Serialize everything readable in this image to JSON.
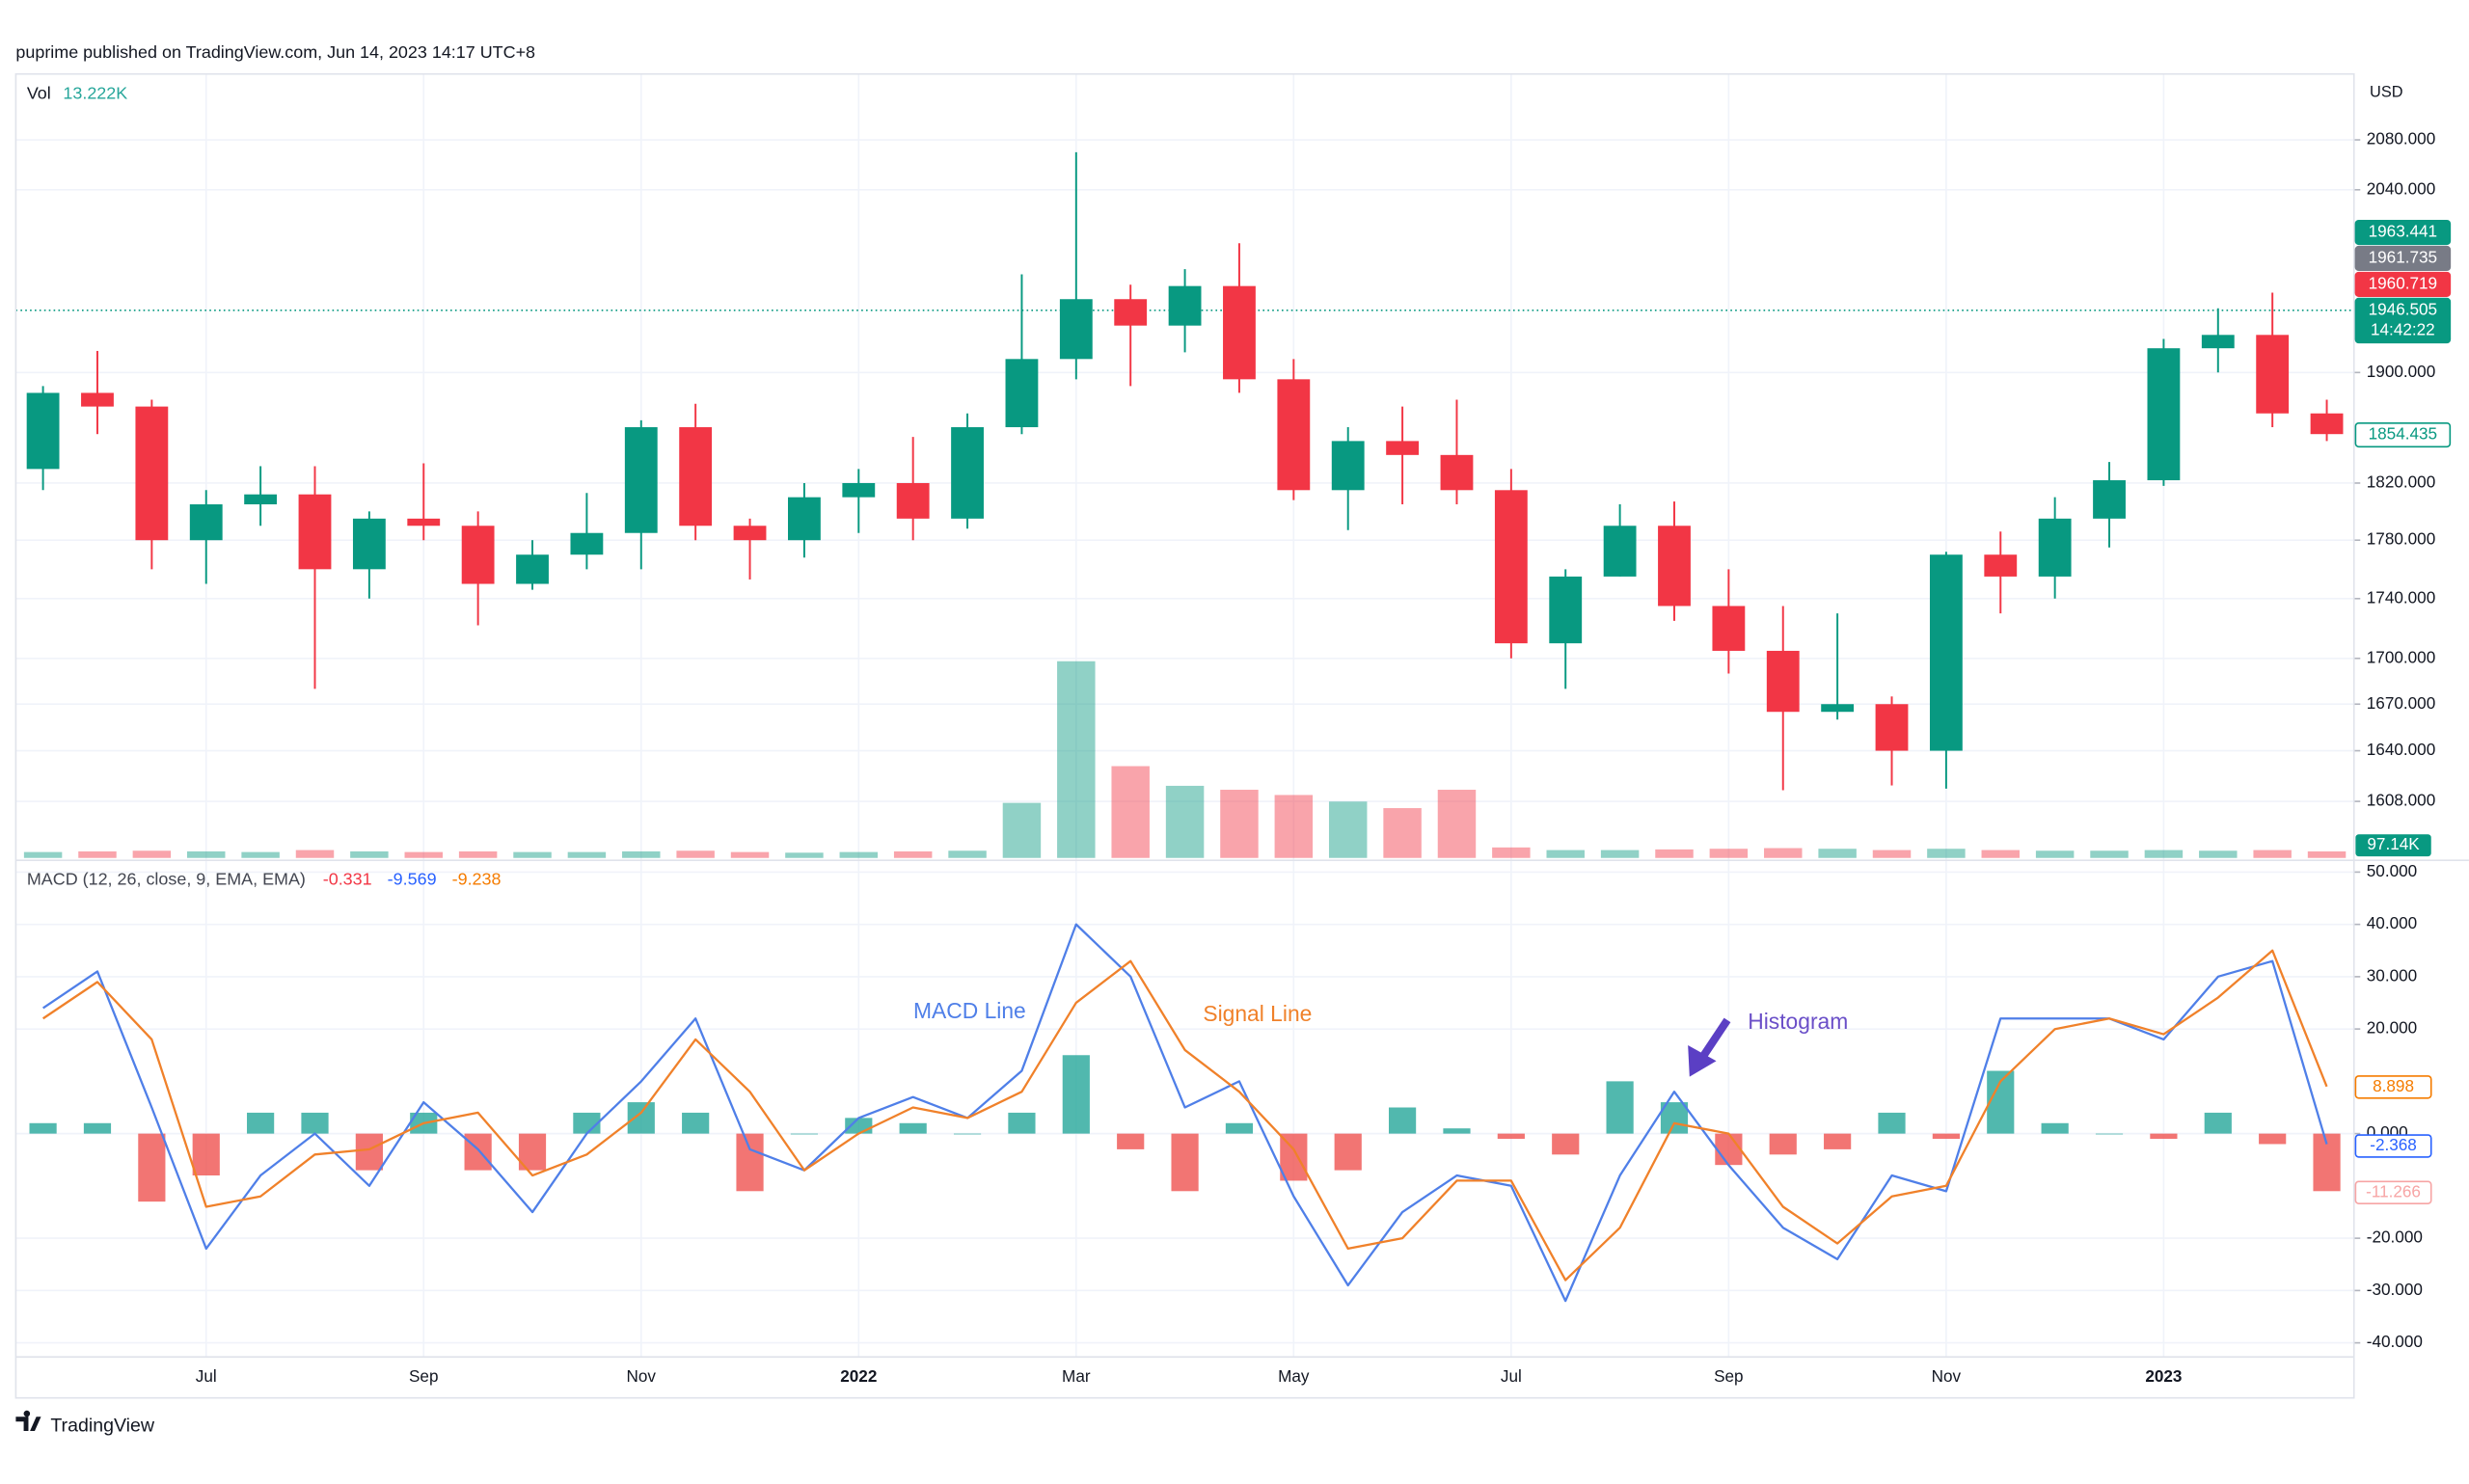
{
  "header": "puprime published on TradingView.com, Jun 14, 2023 14:17 UTC+8",
  "footer": "TradingView",
  "chart_data": [
    {
      "type": "candlestick",
      "currency": "USD",
      "volume_legend_name": "Vol",
      "volume_legend_value": {
        "value": 13.222,
        "label": "13.222K"
      },
      "volume_label": {
        "value": 97.14,
        "label": "97.14K"
      },
      "categories": [
        null,
        null,
        null,
        "Jul",
        null,
        null,
        null,
        "Sep",
        null,
        null,
        null,
        "Nov",
        null,
        null,
        null,
        "2022",
        null,
        null,
        null,
        "Mar",
        null,
        null,
        null,
        "May",
        null,
        null,
        null,
        "Jul",
        null,
        null,
        null,
        "Sep",
        null,
        null,
        null,
        "Nov",
        null,
        null,
        null,
        "2023",
        null,
        null,
        null
      ],
      "open": [
        1830,
        1885,
        1875,
        1780,
        1805,
        1812,
        1760,
        1795,
        1790,
        1750,
        1770,
        1785,
        1860,
        1790,
        1780,
        1810,
        1820,
        1795,
        1860,
        1910,
        1955,
        1935,
        1965,
        1895,
        1815,
        1850,
        1840,
        1815,
        1710,
        1755,
        1790,
        1735,
        1705,
        1665,
        1670,
        1640,
        1770,
        1755,
        1795,
        1822,
        1918,
        1928,
        1870
      ],
      "high": [
        1890,
        1916,
        1880,
        1815,
        1832,
        1832,
        1800,
        1834,
        1800,
        1780,
        1813,
        1865,
        1877,
        1795,
        1820,
        1830,
        1853,
        1870,
        1974,
        2070,
        1966,
        1978,
        1998,
        1910,
        1860,
        1875,
        1880,
        1830,
        1760,
        1805,
        1807,
        1760,
        1735,
        1730,
        1675,
        1772,
        1786,
        1810,
        1835,
        1925,
        1948,
        1960,
        1880
      ],
      "low": [
        1815,
        1855,
        1760,
        1750,
        1790,
        1680,
        1740,
        1780,
        1722,
        1746,
        1760,
        1760,
        1780,
        1753,
        1768,
        1785,
        1780,
        1788,
        1855,
        1895,
        1890,
        1915,
        1885,
        1808,
        1787,
        1805,
        1805,
        1700,
        1680,
        1755,
        1725,
        1690,
        1615,
        1660,
        1618,
        1616,
        1730,
        1740,
        1775,
        1818,
        1900,
        1860,
        1850
      ],
      "close": [
        1885,
        1875,
        1780,
        1805,
        1812,
        1760,
        1795,
        1790,
        1750,
        1770,
        1785,
        1860,
        1790,
        1780,
        1810,
        1820,
        1795,
        1860,
        1910,
        1955,
        1935,
        1965,
        1895,
        1815,
        1850,
        1840,
        1815,
        1710,
        1755,
        1790,
        1735,
        1705,
        1665,
        1670,
        1640,
        1770,
        1755,
        1795,
        1822,
        1918,
        1928,
        1870,
        1855
      ],
      "volume": [
        45,
        50,
        55,
        50,
        45,
        60,
        50,
        45,
        50,
        45,
        45,
        50,
        55,
        45,
        40,
        45,
        50,
        55,
        420,
        1500,
        700,
        550,
        520,
        480,
        430,
        380,
        520,
        80,
        60,
        60,
        65,
        70,
        75,
        70,
        60,
        70,
        60,
        55,
        55,
        60,
        55,
        60,
        50
      ],
      "up_color": "#089981",
      "down_color": "#f23645",
      "log": true,
      "ylim": [
        1573,
        2134
      ],
      "yticks": [
        {
          "value": 2080,
          "label": "2080.000"
        },
        {
          "value": 2040,
          "label": "2040.000"
        },
        {
          "value": 1900,
          "label": "1900.000"
        },
        {
          "value": 1820,
          "label": "1820.000"
        },
        {
          "value": 1780,
          "label": "1780.000"
        },
        {
          "value": 1740,
          "label": "1740.000"
        },
        {
          "value": 1700,
          "label": "1700.000"
        },
        {
          "value": 1670,
          "label": "1670.000"
        },
        {
          "value": 1640,
          "label": "1640.000"
        },
        {
          "value": 1608,
          "label": "1608.000"
        }
      ],
      "price_labels": [
        {
          "value": 1963.441,
          "color": "#089981"
        },
        {
          "value": 1961.735,
          "color": "#787b86"
        },
        {
          "value": 1960.719,
          "color": "#f23645"
        },
        {
          "value": 1946.505,
          "color": "#089981",
          "countdown": "14:42:22"
        },
        {
          "value": 1854.435,
          "color": "#089981",
          "outline": true
        }
      ],
      "grid": true
    },
    {
      "type": "macd",
      "title": "MACD (12, 26, close, 9, EMA, EMA)",
      "legend_values": [
        {
          "value": -0.331,
          "color": "#f23645"
        },
        {
          "value": -9.569,
          "color": "#2962ff"
        },
        {
          "value": -9.238,
          "color": "#f57c00"
        }
      ],
      "series": [
        {
          "name": "MACD Line",
          "color": "#4f7fe8",
          "values": [
            24,
            31,
            5,
            -22,
            -8,
            0,
            -10,
            6,
            -3,
            -15,
            0,
            10,
            22,
            -3,
            -7,
            3,
            7,
            3,
            12,
            40,
            30,
            5,
            10,
            -12,
            -29,
            -15,
            -8,
            -10,
            -32,
            -8,
            8,
            -6,
            -18,
            -24,
            -8,
            -11,
            22,
            22,
            22,
            18,
            30,
            33,
            -2
          ]
        },
        {
          "name": "Signal Line",
          "color": "#f0812a",
          "values": [
            22,
            29,
            18,
            -14,
            -12,
            -4,
            -3,
            2,
            4,
            -8,
            -4,
            4,
            18,
            8,
            -7,
            0,
            5,
            3,
            8,
            25,
            33,
            16,
            8,
            -3,
            -22,
            -20,
            -9,
            -9,
            -28,
            -18,
            2,
            0,
            -14,
            -21,
            -12,
            -10,
            10,
            20,
            22,
            19,
            26,
            35,
            9
          ]
        },
        {
          "name": "Histogram",
          "color": "#6a4fc8",
          "pos_color": "#26a69a",
          "neg_color": "#ef5350",
          "values": [
            2,
            2,
            -13,
            -8,
            4,
            4,
            -7,
            4,
            -7,
            -7,
            4,
            6,
            4,
            -11,
            0,
            3,
            2,
            0,
            4,
            15,
            -3,
            -11,
            2,
            -9,
            -7,
            5,
            1,
            -1,
            -4,
            10,
            6,
            -6,
            -4,
            -3,
            4,
            -1,
            12,
            2,
            0,
            -1,
            4,
            -2,
            -11
          ]
        }
      ],
      "last_labels": [
        {
          "value": 8.898,
          "color": "#f57c00"
        },
        {
          "value": -2.368,
          "color": "#2962ff"
        },
        {
          "value": -11.266,
          "color": "#f7a5a5"
        }
      ],
      "ylim": [
        -42.7,
        51.8
      ],
      "yticks": [
        {
          "value": 50,
          "label": "50.000"
        },
        {
          "value": 40,
          "label": "40.000"
        },
        {
          "value": 30,
          "label": "30.000"
        },
        {
          "value": 20,
          "label": "20.000"
        },
        {
          "value": 0,
          "label": "0.000"
        },
        {
          "value": -20,
          "label": "-20.000"
        },
        {
          "value": -30,
          "label": "-30.000"
        },
        {
          "value": -40,
          "label": "-40.000"
        }
      ],
      "grid": true
    }
  ]
}
